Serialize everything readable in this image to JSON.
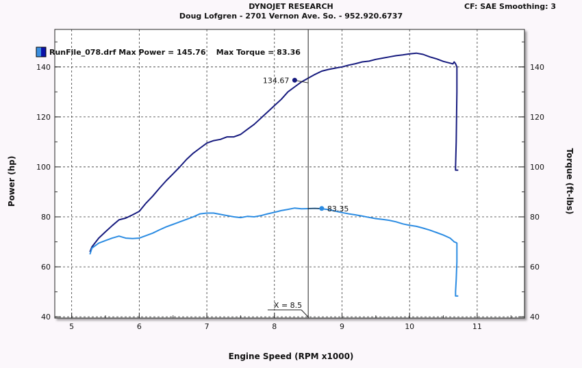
{
  "header": {
    "title": "DYNOJET RESEARCH",
    "subtitle": "Doug Lofgren - 2701 Vernon Ave. So. - 952.920.6737",
    "settings": "CF: SAE  Smoothing: 3"
  },
  "legend": {
    "text": "RunFile_078.drf Max Power = 145.76    Max Torque = 83.36",
    "swatch_colors": [
      "#3a8fe0",
      "#0b12a8"
    ]
  },
  "chart_data": {
    "type": "line",
    "xlabel": "Engine Speed (RPM x1000)",
    "ylabel": "Power (hp)",
    "ylabel_right": "Torque (ft-lbs)",
    "xlim": [
      4.75,
      11.7
    ],
    "ylim": [
      39.5,
      155
    ],
    "x_ticks": [
      5,
      6,
      7,
      8,
      9,
      10,
      11
    ],
    "y_ticks": [
      40,
      60,
      80,
      100,
      120,
      140
    ],
    "grid": true,
    "legend_position": "top-left",
    "series": [
      {
        "color": "#161a7e",
        "x": [
          5.27,
          5.3,
          5.4,
          5.5,
          5.6,
          5.7,
          5.8,
          5.9,
          6.0,
          6.1,
          6.2,
          6.3,
          6.4,
          6.5,
          6.6,
          6.7,
          6.8,
          6.9,
          7.0,
          7.1,
          7.2,
          7.3,
          7.4,
          7.5,
          7.6,
          7.7,
          7.8,
          7.9,
          8.0,
          8.1,
          8.2,
          8.3,
          8.4,
          8.5,
          8.6,
          8.7,
          8.8,
          8.9,
          9.0,
          9.1,
          9.2,
          9.3,
          9.4,
          9.5,
          9.6,
          9.7,
          9.8,
          9.9,
          10.0,
          10.1,
          10.2,
          10.3,
          10.4,
          10.5,
          10.6,
          10.64,
          10.66,
          10.68,
          10.7,
          10.7,
          10.69,
          10.68,
          10.68,
          10.72
        ],
        "y": [
          66,
          68,
          71.5,
          74,
          76.5,
          78.8,
          79.5,
          80.8,
          82.2,
          85.5,
          88.3,
          91.5,
          94.5,
          97.2,
          100,
          103,
          105.5,
          107.5,
          109.5,
          110.5,
          111,
          112,
          112,
          113,
          115,
          117,
          119.5,
          122,
          124.5,
          127,
          130,
          132,
          134,
          135.5,
          137,
          138.3,
          139,
          139.5,
          140,
          140.7,
          141.3,
          142,
          142.3,
          143,
          143.5,
          144,
          144.5,
          144.8,
          145.2,
          145.5,
          145,
          144,
          143.2,
          142.2,
          141.5,
          141.2,
          142,
          141.3,
          140,
          130,
          110,
          100,
          98.7,
          98.7
        ]
      },
      {
        "color": "#2a8be2",
        "x": [
          5.27,
          5.3,
          5.4,
          5.5,
          5.6,
          5.7,
          5.8,
          5.9,
          6.0,
          6.1,
          6.2,
          6.3,
          6.4,
          6.5,
          6.6,
          6.7,
          6.8,
          6.9,
          7.0,
          7.1,
          7.2,
          7.3,
          7.4,
          7.5,
          7.6,
          7.7,
          7.8,
          7.9,
          8.0,
          8.1,
          8.2,
          8.3,
          8.4,
          8.5,
          8.6,
          8.7,
          8.8,
          8.9,
          9.0,
          9.1,
          9.2,
          9.3,
          9.4,
          9.5,
          9.6,
          9.7,
          9.8,
          9.9,
          10.0,
          10.1,
          10.2,
          10.3,
          10.4,
          10.5,
          10.6,
          10.64,
          10.66,
          10.68,
          10.7,
          10.7,
          10.69,
          10.68,
          10.68,
          10.72
        ],
        "y": [
          65,
          67.5,
          69.5,
          70.5,
          71.5,
          72.3,
          71.5,
          71.3,
          71.5,
          72.5,
          73.5,
          74.8,
          76,
          77,
          78,
          79,
          80,
          81.2,
          81.5,
          81.5,
          81,
          80.5,
          80,
          79.7,
          80.2,
          80,
          80.5,
          81.2,
          81.8,
          82.5,
          83,
          83.5,
          83.2,
          83.3,
          83.4,
          83.2,
          82.9,
          82.3,
          81.7,
          81.2,
          80.8,
          80.3,
          79.8,
          79.3,
          79,
          78.6,
          78,
          77.2,
          76.6,
          76.2,
          75.5,
          74.7,
          73.7,
          72.7,
          71.5,
          70.5,
          70,
          69.8,
          69.5,
          62,
          55,
          50,
          48.3,
          48.3
        ]
      }
    ],
    "annotations": [
      {
        "label": "134.67",
        "x": 8.3,
        "y": 134.67
      },
      {
        "label": "83.35",
        "x": 8.7,
        "y": 83.35
      }
    ],
    "cursor": {
      "label": "X = 8.5",
      "x": 8.5
    }
  }
}
